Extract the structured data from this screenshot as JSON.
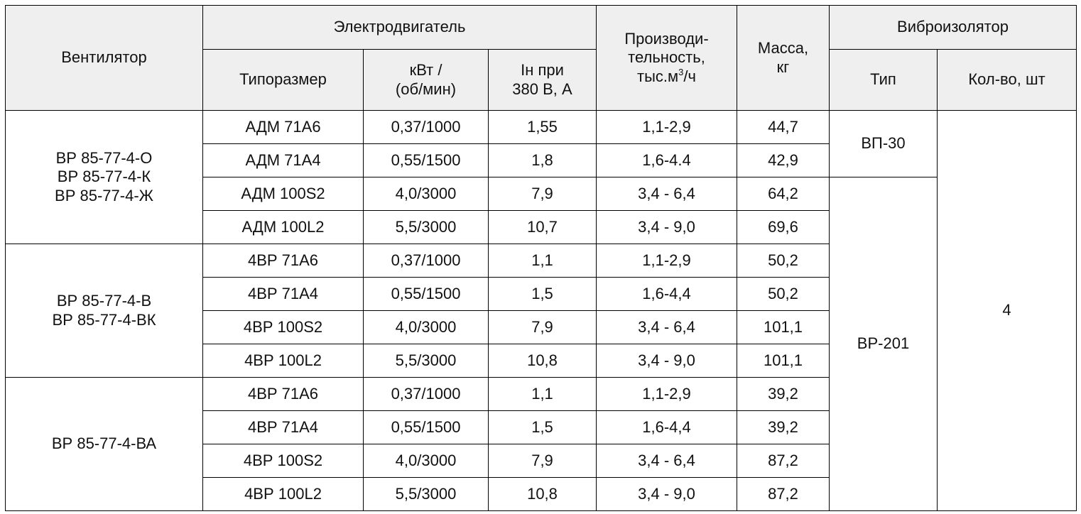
{
  "header": {
    "fan": "Вентилятор",
    "motor": "Электродвигатель",
    "motor_type": "Типоразмер",
    "motor_power_1": "кВт /",
    "motor_power_2": "(об/мин)",
    "motor_current_1": "Iн при",
    "motor_current_2": "380 В, А",
    "capacity_1": "Производи-",
    "capacity_2": "тельность,",
    "capacity_3_pre": "тыс.м",
    "capacity_3_sup": "3",
    "capacity_3_post": "/ч",
    "mass_1": "Масса,",
    "mass_2": "кг",
    "isolator": "Виброизолятор",
    "isolator_type": "Тип",
    "isolator_qty": "Кол-во, шт"
  },
  "groups": [
    {
      "fans": [
        "ВР 85-77-4-О",
        "ВР 85-77-4-К",
        "ВР 85-77-4-Ж"
      ],
      "rows": [
        {
          "type": "АДМ 71А6",
          "power": "0,37/1000",
          "current": "1,55",
          "capacity": "1,1-2,9",
          "mass": "44,7"
        },
        {
          "type": "АДМ 71А4",
          "power": "0,55/1500",
          "current": "1,8",
          "capacity": "1,6-4.4",
          "mass": "42,9"
        },
        {
          "type": "АДМ 100S2",
          "power": "4,0/3000",
          "current": "7,9",
          "capacity": "3,4 - 6,4",
          "mass": "64,2"
        },
        {
          "type": "АДМ 100L2",
          "power": "5,5/3000",
          "current": "10,7",
          "capacity": "3,4 - 9,0",
          "mass": "69,6"
        }
      ]
    },
    {
      "fans": [
        "ВР 85-77-4-В",
        "ВР 85-77-4-ВК"
      ],
      "rows": [
        {
          "type": "4ВР 71А6",
          "power": "0,37/1000",
          "current": "1,1",
          "capacity": "1,1-2,9",
          "mass": "50,2"
        },
        {
          "type": "4ВР 71А4",
          "power": "0,55/1500",
          "current": "1,5",
          "capacity": "1,6-4,4",
          "mass": "50,2"
        },
        {
          "type": "4ВР 100S2",
          "power": "4,0/3000",
          "current": "7,9",
          "capacity": "3,4 - 6,4",
          "mass": "101,1"
        },
        {
          "type": "4ВР 100L2",
          "power": "5,5/3000",
          "current": "10,8",
          "capacity": "3,4 - 9,0",
          "mass": "101,1"
        }
      ]
    },
    {
      "fans": [
        "ВР 85-77-4-ВА"
      ],
      "rows": [
        {
          "type": "4ВР 71А6",
          "power": "0,37/1000",
          "current": "1,1",
          "capacity": "1,1-2,9",
          "mass": "39,2"
        },
        {
          "type": "4ВР 71А4",
          "power": "0,55/1500",
          "current": "1,5",
          "capacity": "1,6-4,4",
          "mass": "39,2"
        },
        {
          "type": "4ВР 100S2",
          "power": "4,0/3000",
          "current": "7,9",
          "capacity": "3,4 - 6,4",
          "mass": "87,2"
        },
        {
          "type": "4ВР 100L2",
          "power": "5,5/3000",
          "current": "10,8",
          "capacity": "3,4 - 9,0",
          "mass": "87,2"
        }
      ]
    }
  ],
  "isolators": [
    {
      "type": "ВП-30"
    },
    {
      "type": "ВР-201"
    }
  ],
  "isolator_qty": "4"
}
